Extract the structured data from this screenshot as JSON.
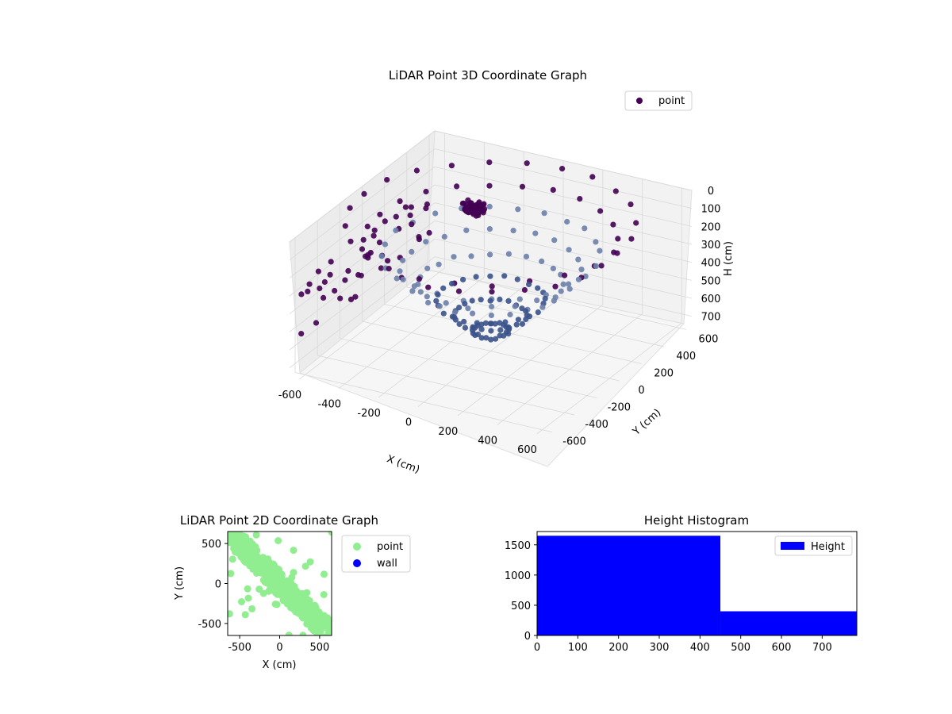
{
  "colors": {
    "point_dark": "#440154",
    "point_mid": "#3b528b",
    "point_light": "#6b7fa8",
    "scatter2d_point": "#90ee90",
    "scatter2d_wall": "#0000ff",
    "histogram": "#0000ff",
    "pane": "#f2f2f2",
    "grid": "#d9d9d9"
  },
  "chart_data": [
    {
      "type": "scatter",
      "projection": "3d",
      "title": "LiDAR Point 3D Coordinate Graph",
      "xlabel": "X (cm)",
      "ylabel": "Y (cm)",
      "zlabel": "H (cm)",
      "xlim": [
        -650,
        650
      ],
      "ylim": [
        -650,
        650
      ],
      "zlim": [
        0,
        750
      ],
      "z_inverted": true,
      "x_ticks": [
        "-600",
        "-400",
        "-200",
        "0",
        "200",
        "400",
        "600"
      ],
      "y_ticks": [
        "-600",
        "-400",
        "-200",
        "0",
        "200",
        "400",
        "600"
      ],
      "z_ticks": [
        "0",
        "100",
        "200",
        "300",
        "400",
        "500",
        "600",
        "700"
      ],
      "grid": true,
      "legend": {
        "position": "upper-right",
        "entries": [
          {
            "label": "point",
            "color": "#440154"
          }
        ]
      },
      "series": [
        {
          "name": "point",
          "pattern": "radial floor-scan from sensor at origin",
          "rings": 8,
          "spokes": 24,
          "floor_height": 720,
          "cluster_center": [
            -300,
            380,
            210
          ],
          "cluster_points": 60
        }
      ]
    },
    {
      "type": "scatter",
      "title": "LiDAR Point 2D Coordinate Graph",
      "xlabel": "X (cm)",
      "ylabel": "Y (cm)",
      "xlim": [
        -650,
        650
      ],
      "ylim": [
        -650,
        650
      ],
      "x_ticks": [
        "-500",
        "0",
        "500"
      ],
      "y_ticks": [
        "-500",
        "0",
        "500"
      ],
      "legend": {
        "position": "outside-right",
        "entries": [
          {
            "label": "point",
            "color": "#90ee90"
          },
          {
            "label": "wall",
            "color": "#0000ff"
          }
        ]
      },
      "series": [
        {
          "name": "point",
          "pattern": "diagonal band from (-650,650) to (650,-650) plus scattered points"
        },
        {
          "name": "wall",
          "values": []
        }
      ]
    },
    {
      "type": "bar",
      "subtype": "histogram",
      "title": "Height Histogram",
      "xlabel": "",
      "ylabel": "",
      "xlim": [
        0,
        785
      ],
      "ylim": [
        0,
        1720
      ],
      "x_ticks": [
        "0",
        "100",
        "200",
        "300",
        "400",
        "500",
        "600",
        "700"
      ],
      "y_ticks": [
        "0",
        "500",
        "1000",
        "1500"
      ],
      "bins": [
        {
          "start": 0,
          "end": 450,
          "count": 1650
        },
        {
          "start": 450,
          "end": 785,
          "count": 400
        }
      ],
      "legend": {
        "position": "upper-right",
        "entries": [
          {
            "label": "Height",
            "color": "#0000ff"
          }
        ]
      }
    }
  ],
  "titles": {
    "plot3d": "LiDAR Point 3D Coordinate Graph",
    "plot2d": "LiDAR Point 2D Coordinate Graph",
    "hist": "Height Histogram"
  }
}
